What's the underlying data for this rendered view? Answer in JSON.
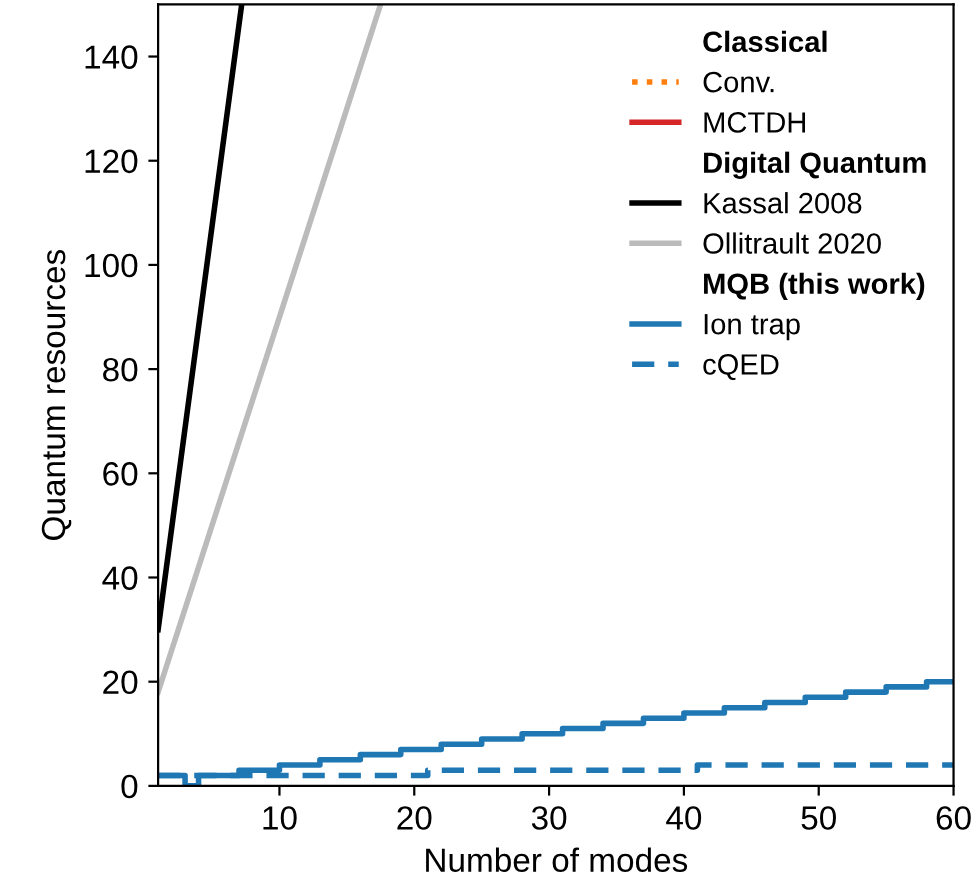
{
  "chart_data": {
    "type": "line",
    "xlabel": "Number of modes",
    "ylabel": "Quantum resources",
    "xlim": [
      1,
      60
    ],
    "ylim": [
      0,
      150
    ],
    "xticks": [
      10,
      20,
      30,
      40,
      50,
      60
    ],
    "yticks": [
      0,
      20,
      40,
      60,
      80,
      100,
      120,
      140
    ],
    "grid": false,
    "legend": "top right",
    "annotations": [
      "Classical",
      "Digital Quantum",
      "MQB (this work)"
    ],
    "series": [
      {
        "name": "Conv.",
        "color": "#ff7f0e",
        "line_style": "dotted"
      },
      {
        "name": "MCTDH",
        "color": "#d62728"
      },
      {
        "name": "Kassal 2008",
        "color": "#000000",
        "x": [
          1,
          7.2
        ],
        "values": [
          30,
          150
        ]
      },
      {
        "name": "Ollitrault 2020",
        "color": "#bbbbbb",
        "x": [
          1,
          17.5
        ],
        "values": [
          18,
          150
        ]
      },
      {
        "name": "Ion trap",
        "color": "#1f77b4",
        "type": "step",
        "x": [
          1,
          2,
          3,
          4,
          7,
          10,
          13,
          16,
          19,
          22,
          25,
          28,
          31,
          34,
          37,
          40,
          43,
          46,
          49,
          52,
          55,
          58,
          60
        ],
        "values": [
          2,
          2,
          0,
          2,
          3,
          4,
          5,
          6,
          7,
          8,
          9,
          10,
          11,
          12,
          13,
          14,
          15,
          16,
          17,
          18,
          19,
          20,
          20
        ]
      },
      {
        "name": "cQED",
        "color": "#1f77b4",
        "type": "step",
        "line_style": "dashed",
        "x": [
          1,
          20,
          21,
          40,
          41,
          60
        ],
        "values": [
          2,
          2,
          3,
          3,
          4,
          4
        ]
      }
    ]
  }
}
